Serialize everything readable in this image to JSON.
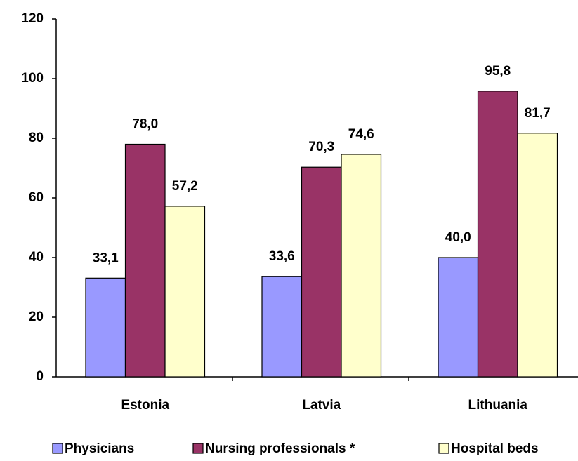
{
  "chart_data": {
    "type": "bar",
    "categories": [
      "Estonia",
      "Latvia",
      "Lithuania"
    ],
    "series": [
      {
        "name": "Physicians",
        "color": "#9999ff",
        "values": [
          33.1,
          33.6,
          40.0
        ],
        "value_labels": [
          "33,1",
          "33,6",
          "40,0"
        ]
      },
      {
        "name": "Nursing professionals *",
        "color": "#993366",
        "values": [
          78.0,
          70.3,
          95.8
        ],
        "value_labels": [
          "78,0",
          "70,3",
          "95,8"
        ]
      },
      {
        "name": "Hospital beds",
        "color": "#ffffcc",
        "values": [
          57.2,
          74.6,
          81.7
        ],
        "value_labels": [
          "57,2",
          "74,6",
          "81,7"
        ]
      }
    ],
    "ylim": [
      0,
      120
    ],
    "yticks": [
      0,
      20,
      40,
      60,
      80,
      100,
      120
    ],
    "legend": "bottom"
  }
}
